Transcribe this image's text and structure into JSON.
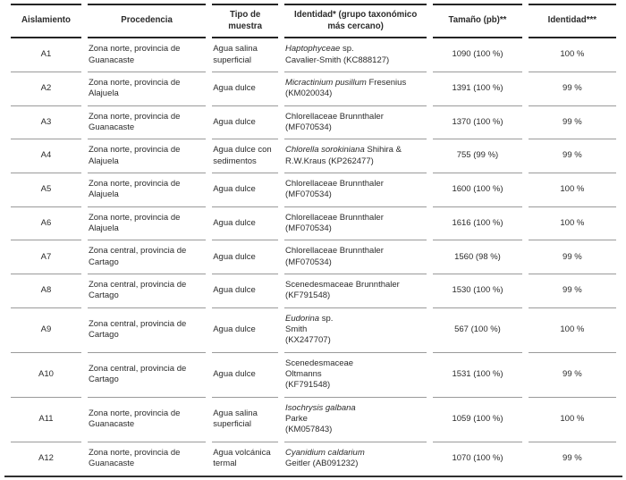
{
  "colors": {
    "background": "#ffffff",
    "text": "#2b2b2b",
    "rule_heavy": "#242424",
    "rule_light": "#9a9a9a"
  },
  "table": {
    "columns": [
      "Aislamiento",
      "Procedencia",
      "Tipo de muestra",
      "Identidad* (grupo taxonómico más cercano)",
      "Tamaño (pb)**",
      "Identidad***"
    ],
    "rows": [
      {
        "aislamiento": "A1",
        "procedencia": "Zona norte, provincia de Guanacaste",
        "tipo_muestra": "Agua salina superficial",
        "identidad_lines": [
          [
            {
              "t": "Haptophyceae",
              "i": true
            },
            {
              "t": " sp.",
              "i": false
            }
          ],
          [
            {
              "t": "Cavalier-Smith (KC888127)",
              "i": false
            }
          ]
        ],
        "tamano": "1090 (100 %)",
        "identidad_pct": "100 %"
      },
      {
        "aislamiento": "A2",
        "procedencia": "Zona norte, provincia de Alajuela",
        "tipo_muestra": "Agua dulce",
        "identidad_lines": [
          [
            {
              "t": "Micractinium pusillum",
              "i": true
            },
            {
              "t": " Fresenius",
              "i": false
            }
          ],
          [
            {
              "t": "(KM020034)",
              "i": false
            }
          ]
        ],
        "tamano": "1391 (100 %)",
        "identidad_pct": "99 %"
      },
      {
        "aislamiento": "A3",
        "procedencia": "Zona norte, provincia de Guanacaste",
        "tipo_muestra": "Agua dulce",
        "identidad_lines": [
          [
            {
              "t": "Chlorellaceae Brunnthaler",
              "i": false
            }
          ],
          [
            {
              "t": "(MF070534)",
              "i": false
            }
          ]
        ],
        "tamano": "1370 (100 %)",
        "identidad_pct": "99 %"
      },
      {
        "aislamiento": "A4",
        "procedencia": "Zona norte, provincia de Alajuela",
        "tipo_muestra": "Agua dulce con sedimentos",
        "identidad_lines": [
          [
            {
              "t": "Chlorella sorokiniana",
              "i": true
            },
            {
              "t": " Shihira &",
              "i": false
            }
          ],
          [
            {
              "t": "R.W.Kraus (KP262477)",
              "i": false
            }
          ]
        ],
        "tamano": "755 (99 %)",
        "identidad_pct": "99 %"
      },
      {
        "aislamiento": "A5",
        "procedencia": "Zona norte, provincia de Alajuela",
        "tipo_muestra": "Agua dulce",
        "identidad_lines": [
          [
            {
              "t": "Chlorellaceae Brunnthaler",
              "i": false
            }
          ],
          [
            {
              "t": "(MF070534)",
              "i": false
            }
          ]
        ],
        "tamano": "1600 (100 %)",
        "identidad_pct": "100 %"
      },
      {
        "aislamiento": "A6",
        "procedencia": "Zona norte, provincia de Alajuela",
        "tipo_muestra": "Agua dulce",
        "identidad_lines": [
          [
            {
              "t": "Chlorellaceae Brunnthaler",
              "i": false
            }
          ],
          [
            {
              "t": "(MF070534)",
              "i": false
            }
          ]
        ],
        "tamano": "1616 (100 %)",
        "identidad_pct": "100 %"
      },
      {
        "aislamiento": "A7",
        "procedencia": "Zona central, provincia de Cartago",
        "tipo_muestra": "Agua dulce",
        "identidad_lines": [
          [
            {
              "t": "Chlorellaceae Brunnthaler",
              "i": false
            }
          ],
          [
            {
              "t": "(MF070534)",
              "i": false
            }
          ]
        ],
        "tamano": "1560 (98 %)",
        "identidad_pct": "99 %"
      },
      {
        "aislamiento": "A8",
        "procedencia": "Zona central, provincia de Cartago",
        "tipo_muestra": "Agua dulce",
        "identidad_lines": [
          [
            {
              "t": "Scenedesmaceae Brunnthaler",
              "i": false
            }
          ],
          [
            {
              "t": "(KF791548)",
              "i": false
            }
          ]
        ],
        "tamano": "1530 (100 %)",
        "identidad_pct": "99 %"
      },
      {
        "aislamiento": "A9",
        "procedencia": "Zona central, provincia de Cartago",
        "tipo_muestra": "Agua dulce",
        "identidad_lines": [
          [
            {
              "t": "Eudorina",
              "i": true
            },
            {
              "t": " sp.",
              "i": false
            }
          ],
          [
            {
              "t": "Smith",
              "i": false
            }
          ],
          [
            {
              "t": "(KX247707)",
              "i": false
            }
          ]
        ],
        "tamano": "567 (100 %)",
        "identidad_pct": "100 %"
      },
      {
        "aislamiento": "A10",
        "procedencia": "Zona central, provincia de Cartago",
        "tipo_muestra": "Agua dulce",
        "identidad_lines": [
          [
            {
              "t": "Scenedesmaceae",
              "i": false
            }
          ],
          [
            {
              "t": "Oltmanns",
              "i": false
            }
          ],
          [
            {
              "t": "(KF791548)",
              "i": false
            }
          ]
        ],
        "tamano": "1531 (100 %)",
        "identidad_pct": "99 %"
      },
      {
        "aislamiento": "A11",
        "procedencia": "Zona norte, provincia de Guanacaste",
        "tipo_muestra": "Agua salina superficial",
        "identidad_lines": [
          [
            {
              "t": "Isochrysis galbana",
              "i": true
            }
          ],
          [
            {
              "t": "Parke",
              "i": false
            }
          ],
          [
            {
              "t": "(KM057843)",
              "i": false
            }
          ]
        ],
        "tamano": "1059 (100 %)",
        "identidad_pct": "100 %"
      },
      {
        "aislamiento": "A12",
        "procedencia": "Zona norte, provincia de Guanacaste",
        "tipo_muestra": "Agua volcánica termal",
        "identidad_lines": [
          [
            {
              "t": "Cyanidium caldarium",
              "i": true
            }
          ],
          [
            {
              "t": "Geitler (AB091232)",
              "i": false
            }
          ]
        ],
        "tamano": "1070 (100 %)",
        "identidad_pct": "99 %"
      }
    ]
  }
}
